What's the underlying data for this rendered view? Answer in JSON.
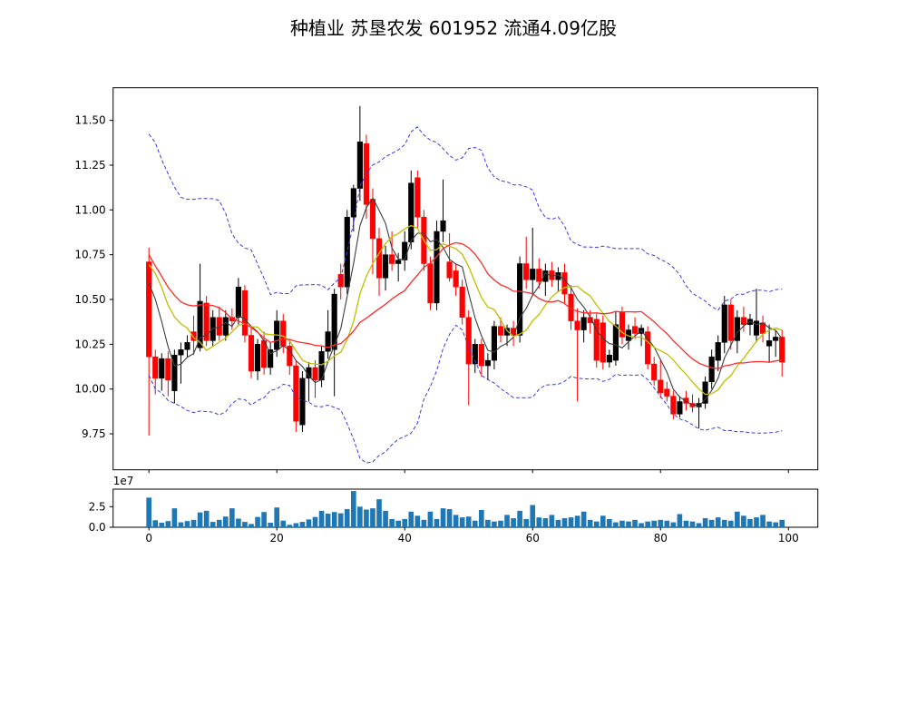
{
  "title": "种植业  苏垦农发  601952  流通4.09亿股",
  "chart_data": {
    "type": "candlestick+volume",
    "title": "种植业  苏垦农发  601952  流通4.09亿股",
    "panels": {
      "price": {
        "ylabel": "",
        "ylim": [
          9.549,
          11.682
        ],
        "xlim": [
          -5.6,
          104.6
        ],
        "yticks": [
          11.5,
          11.25,
          11.0,
          10.75,
          10.5,
          10.25,
          10.0,
          9.75
        ],
        "grid": false
      },
      "volume": {
        "ylim_e7": [
          0,
          4.63
        ],
        "yticks_e7": [
          0.0,
          2.5
        ],
        "offset_label": "1e7",
        "xticks": [
          0,
          20,
          40,
          60,
          80,
          100
        ]
      }
    },
    "indicators": {
      "ma_periods": [
        5,
        10,
        20
      ],
      "bollinger": {
        "period": 20,
        "mult": 2
      },
      "seed_closes": [
        11.3,
        11.35,
        11.25,
        11.1,
        10.95,
        10.6,
        10.4,
        10.35,
        10.3,
        10.45,
        10.55,
        10.95,
        11.05,
        10.85,
        10.6,
        10.5,
        10.8,
        10.75,
        10.72
      ]
    },
    "colors": {
      "up_candle": "#000000",
      "down_candle": "#ff0000",
      "ma5": "#3d3d3d",
      "ma10": "#bfbf00",
      "ma20": "#ff2a2a",
      "bollinger": "#3b3bde",
      "volume_bar": "#1f77b4",
      "axes_edge": "#000000",
      "background": "#ffffff"
    },
    "volume_unit": "1e7",
    "candles_ohlcv": [
      [
        10.71,
        10.79,
        9.74,
        10.18,
        3.6
      ],
      [
        10.18,
        10.22,
        9.97,
        10.06,
        0.85
      ],
      [
        10.06,
        10.2,
        9.99,
        10.17,
        0.55
      ],
      [
        10.17,
        10.21,
        9.96,
        10.05,
        0.75
      ],
      [
        9.99,
        10.22,
        9.92,
        10.19,
        2.3
      ],
      [
        10.19,
        10.26,
        10.03,
        10.22,
        0.6
      ],
      [
        10.22,
        10.3,
        10.18,
        10.26,
        0.75
      ],
      [
        10.32,
        10.41,
        10.19,
        10.27,
        0.9
      ],
      [
        10.23,
        10.7,
        10.21,
        10.49,
        1.8
      ],
      [
        10.48,
        10.52,
        10.24,
        10.27,
        2.0
      ],
      [
        10.27,
        10.44,
        10.24,
        10.4,
        0.65
      ],
      [
        10.4,
        10.46,
        10.27,
        10.3,
        0.9
      ],
      [
        10.3,
        10.44,
        10.27,
        10.4,
        1.3
      ],
      [
        10.4,
        10.45,
        10.33,
        10.38,
        2.3
      ],
      [
        10.4,
        10.62,
        10.36,
        10.57,
        1.05
      ],
      [
        10.55,
        10.58,
        10.26,
        10.3,
        0.65
      ],
      [
        10.3,
        10.34,
        10.06,
        10.1,
        0.4
      ],
      [
        10.1,
        10.28,
        10.05,
        10.25,
        1.25
      ],
      [
        10.27,
        10.32,
        10.08,
        10.12,
        1.85
      ],
      [
        10.12,
        10.26,
        10.08,
        10.22,
        0.55
      ],
      [
        10.22,
        10.44,
        10.18,
        10.38,
        2.4
      ],
      [
        10.38,
        10.42,
        10.2,
        10.24,
        0.8
      ],
      [
        10.24,
        10.28,
        10.08,
        10.13,
        0.3
      ],
      [
        10.13,
        10.16,
        9.76,
        9.82,
        0.5
      ],
      [
        9.8,
        10.1,
        9.76,
        10.06,
        0.65
      ],
      [
        10.06,
        10.15,
        9.93,
        10.12,
        0.95
      ],
      [
        10.12,
        10.16,
        9.95,
        10.05,
        1.25
      ],
      [
        10.05,
        10.24,
        10.01,
        10.21,
        2.0
      ],
      [
        10.21,
        10.44,
        10.17,
        10.32,
        1.65
      ],
      [
        10.22,
        10.56,
        9.96,
        10.53,
        1.85
      ],
      [
        10.64,
        10.7,
        10.5,
        10.57,
        1.7
      ],
      [
        10.57,
        11.0,
        10.53,
        10.96,
        2.2
      ],
      [
        10.96,
        11.14,
        10.88,
        11.12,
        4.4
      ],
      [
        11.12,
        11.58,
        11.05,
        11.38,
        2.5
      ],
      [
        11.37,
        11.42,
        10.95,
        11.03,
        2.15
      ],
      [
        11.06,
        11.12,
        10.64,
        10.84,
        2.3
      ],
      [
        10.84,
        10.9,
        10.52,
        10.62,
        3.4
      ],
      [
        10.62,
        10.8,
        10.55,
        10.75,
        2.0
      ],
      [
        10.75,
        10.88,
        10.66,
        10.7,
        1.0
      ],
      [
        10.7,
        10.76,
        10.6,
        10.72,
        0.8
      ],
      [
        10.72,
        10.88,
        10.66,
        10.82,
        1.0
      ],
      [
        10.82,
        11.22,
        10.78,
        11.15,
        1.9
      ],
      [
        11.18,
        11.22,
        10.9,
        10.96,
        1.4
      ],
      [
        10.96,
        11.0,
        10.66,
        10.7,
        0.9
      ],
      [
        10.7,
        10.74,
        10.44,
        10.48,
        1.9
      ],
      [
        10.48,
        10.94,
        10.44,
        10.88,
        1.0
      ],
      [
        10.88,
        11.17,
        10.82,
        10.94,
        2.3
      ],
      [
        10.71,
        10.87,
        10.6,
        10.62,
        2.2
      ],
      [
        10.66,
        10.7,
        10.52,
        10.57,
        1.5
      ],
      [
        10.57,
        10.61,
        10.36,
        10.4,
        1.2
      ],
      [
        10.4,
        10.44,
        9.91,
        10.14,
        1.3
      ],
      [
        10.14,
        10.28,
        10.09,
        10.25,
        0.8
      ],
      [
        10.25,
        10.28,
        10.07,
        10.13,
        2.1
      ],
      [
        10.13,
        10.2,
        10.05,
        10.16,
        0.9
      ],
      [
        10.16,
        10.38,
        10.11,
        10.35,
        0.7
      ],
      [
        10.35,
        10.4,
        10.26,
        10.3,
        0.8
      ],
      [
        10.3,
        10.36,
        10.24,
        10.34,
        1.5
      ],
      [
        10.34,
        10.38,
        10.24,
        10.3,
        1.1
      ],
      [
        10.3,
        10.74,
        10.26,
        10.7,
        2.0
      ],
      [
        10.7,
        10.85,
        10.56,
        10.61,
        1.0
      ],
      [
        10.61,
        10.9,
        10.52,
        10.67,
        2.7
      ],
      [
        10.67,
        10.73,
        10.56,
        10.6,
        1.2
      ],
      [
        10.6,
        10.7,
        10.52,
        10.66,
        1.1
      ],
      [
        10.66,
        10.71,
        10.57,
        10.61,
        1.5
      ],
      [
        10.61,
        10.68,
        10.54,
        10.65,
        0.9
      ],
      [
        10.65,
        10.7,
        10.48,
        10.53,
        1.1
      ],
      [
        10.53,
        10.58,
        10.33,
        10.38,
        1.2
      ],
      [
        10.38,
        10.45,
        9.93,
        10.33,
        1.4
      ],
      [
        10.33,
        10.44,
        10.26,
        10.4,
        1.9
      ],
      [
        10.4,
        10.44,
        10.31,
        10.37,
        0.9
      ],
      [
        10.39,
        10.42,
        10.12,
        10.16,
        0.7
      ],
      [
        10.37,
        10.41,
        10.11,
        10.15,
        1.4
      ],
      [
        10.15,
        10.22,
        10.12,
        10.19,
        1.0
      ],
      [
        10.16,
        10.43,
        10.13,
        10.36,
        0.6
      ],
      [
        10.43,
        10.46,
        10.25,
        10.29,
        0.8
      ],
      [
        10.27,
        10.36,
        10.22,
        10.33,
        0.7
      ],
      [
        10.35,
        10.4,
        10.28,
        10.31,
        0.9
      ],
      [
        10.31,
        10.36,
        10.24,
        10.34,
        0.5
      ],
      [
        10.32,
        10.35,
        10.11,
        10.14,
        0.7
      ],
      [
        10.14,
        10.18,
        10.02,
        10.05,
        0.8
      ],
      [
        10.05,
        10.16,
        9.95,
        9.98,
        0.9
      ],
      [
        10.0,
        10.04,
        9.93,
        9.96,
        0.8
      ],
      [
        9.96,
        9.99,
        9.83,
        9.86,
        0.6
      ],
      [
        9.86,
        9.96,
        9.84,
        9.93,
        1.6
      ],
      [
        9.95,
        9.99,
        9.88,
        9.92,
        0.8
      ],
      [
        9.92,
        9.97,
        9.87,
        9.9,
        0.7
      ],
      [
        9.9,
        9.95,
        9.78,
        9.92,
        0.5
      ],
      [
        9.92,
        10.07,
        9.89,
        10.04,
        1.1
      ],
      [
        10.04,
        10.22,
        10.0,
        10.18,
        0.9
      ],
      [
        10.16,
        10.3,
        10.1,
        10.26,
        1.2
      ],
      [
        10.26,
        10.52,
        10.2,
        10.47,
        0.9
      ],
      [
        10.47,
        10.5,
        10.22,
        10.27,
        0.8
      ],
      [
        10.27,
        10.44,
        10.2,
        10.4,
        1.9
      ],
      [
        10.4,
        10.46,
        10.32,
        10.36,
        1.4
      ],
      [
        10.36,
        10.42,
        10.3,
        10.39,
        1.0
      ],
      [
        10.3,
        10.56,
        10.26,
        10.38,
        1.2
      ],
      [
        10.37,
        10.41,
        10.26,
        10.31,
        1.5
      ],
      [
        10.24,
        10.36,
        10.15,
        10.27,
        0.7
      ],
      [
        10.27,
        10.33,
        10.18,
        10.29,
        0.6
      ],
      [
        10.29,
        10.33,
        10.07,
        10.15,
        0.9
      ]
    ]
  }
}
